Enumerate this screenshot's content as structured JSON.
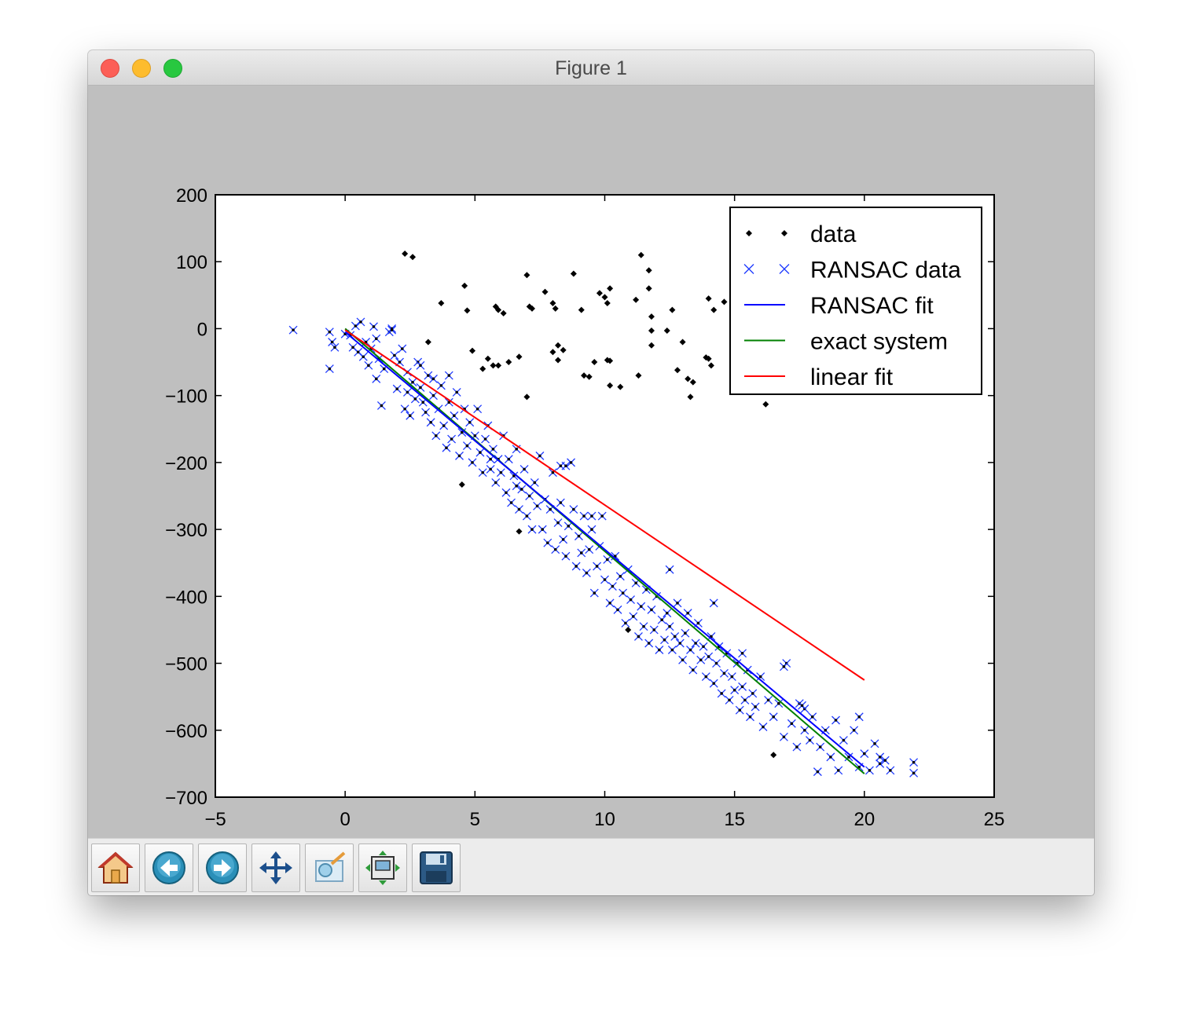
{
  "window": {
    "title": "Figure 1"
  },
  "toolbar": {
    "buttons": [
      {
        "name": "home",
        "icon": "home-icon",
        "label": "Home"
      },
      {
        "name": "back",
        "icon": "back-arrow-icon",
        "label": "Back"
      },
      {
        "name": "forward",
        "icon": "forward-arrow-icon",
        "label": "Forward"
      },
      {
        "name": "pan",
        "icon": "pan-icon",
        "label": "Pan"
      },
      {
        "name": "zoom",
        "icon": "zoom-rect-icon",
        "label": "Zoom"
      },
      {
        "name": "subplots",
        "icon": "subplots-config-icon",
        "label": "Subplots"
      },
      {
        "name": "save",
        "icon": "save-floppy-icon",
        "label": "Save"
      }
    ]
  },
  "chart_data": {
    "type": "scatter",
    "title": "",
    "xlabel": "",
    "ylabel": "",
    "xlim": [
      -5,
      25
    ],
    "ylim": [
      -700,
      200
    ],
    "xticks": [
      "−5",
      "0",
      "5",
      "10",
      "15",
      "20",
      "25"
    ],
    "yticks": [
      "200",
      "100",
      "0",
      "−100",
      "−200",
      "−300",
      "−400",
      "−500",
      "−600",
      "−700"
    ],
    "legend_position": "top-right",
    "grid": false,
    "series": [
      {
        "name": "data",
        "kind": "points",
        "marker": "diamond",
        "color": "#000000",
        "points": [
          [
            2.3,
            112
          ],
          [
            2.6,
            107
          ],
          [
            3.7,
            38
          ],
          [
            4.6,
            64
          ],
          [
            4.7,
            27
          ],
          [
            4.9,
            -33
          ],
          [
            5.3,
            -60
          ],
          [
            5.8,
            33
          ],
          [
            5.9,
            28
          ],
          [
            6.1,
            23
          ],
          [
            5.5,
            -45
          ],
          [
            5.7,
            -55
          ],
          [
            5.9,
            -55
          ],
          [
            6.3,
            -50
          ],
          [
            6.7,
            -42
          ],
          [
            7.0,
            80
          ],
          [
            7.1,
            33
          ],
          [
            7.2,
            30
          ],
          [
            7.7,
            55
          ],
          [
            8.0,
            38
          ],
          [
            8.1,
            30
          ],
          [
            8.2,
            -25
          ],
          [
            8.0,
            -35
          ],
          [
            8.4,
            -32
          ],
          [
            8.2,
            -47
          ],
          [
            8.8,
            82
          ],
          [
            9.1,
            28
          ],
          [
            9.8,
            53
          ],
          [
            10.0,
            47
          ],
          [
            10.1,
            38
          ],
          [
            10.2,
            60
          ],
          [
            9.6,
            -50
          ],
          [
            10.1,
            -47
          ],
          [
            10.2,
            -48
          ],
          [
            9.2,
            -70
          ],
          [
            9.4,
            -72
          ],
          [
            10.2,
            -85
          ],
          [
            10.6,
            -87
          ],
          [
            11.2,
            43
          ],
          [
            11.4,
            110
          ],
          [
            11.7,
            87
          ],
          [
            11.7,
            60
          ],
          [
            11.8,
            18
          ],
          [
            11.8,
            -3
          ],
          [
            12.4,
            -3
          ],
          [
            12.6,
            28
          ],
          [
            11.3,
            -70
          ],
          [
            11.8,
            -25
          ],
          [
            12.8,
            -62
          ],
          [
            13.0,
            -20
          ],
          [
            13.2,
            -75
          ],
          [
            13.4,
            -80
          ],
          [
            13.3,
            -102
          ],
          [
            13.9,
            -43
          ],
          [
            14.0,
            -45
          ],
          [
            14.1,
            -55
          ],
          [
            14.0,
            45
          ],
          [
            14.2,
            28
          ],
          [
            14.6,
            40
          ],
          [
            16.2,
            -113
          ],
          [
            10.9,
            -450
          ],
          [
            16.5,
            -637
          ],
          [
            6.7,
            -303
          ],
          [
            4.5,
            -233
          ],
          [
            3.2,
            -20
          ],
          [
            7.0,
            -102
          ]
        ]
      },
      {
        "name": "RANSAC data",
        "kind": "points",
        "marker": "x",
        "color": "#1f3bff",
        "points": [
          [
            -2.0,
            -2
          ],
          [
            -0.6,
            -5
          ],
          [
            -0.6,
            -60
          ],
          [
            -0.5,
            -20
          ],
          [
            -0.4,
            -28
          ],
          [
            0.0,
            -8
          ],
          [
            0.2,
            -10
          ],
          [
            0.3,
            -28
          ],
          [
            0.4,
            4
          ],
          [
            0.6,
            10
          ],
          [
            0.5,
            -35
          ],
          [
            0.7,
            -42
          ],
          [
            0.8,
            -20
          ],
          [
            0.9,
            -55
          ],
          [
            1.0,
            -30
          ],
          [
            1.1,
            3
          ],
          [
            1.2,
            -15
          ],
          [
            1.3,
            -45
          ],
          [
            1.2,
            -75
          ],
          [
            1.4,
            -115
          ],
          [
            1.5,
            -60
          ],
          [
            1.7,
            -5
          ],
          [
            1.8,
            0
          ],
          [
            1.9,
            -40
          ],
          [
            2.0,
            -90
          ],
          [
            2.1,
            -50
          ],
          [
            2.2,
            -30
          ],
          [
            2.3,
            -120
          ],
          [
            2.4,
            -95
          ],
          [
            2.4,
            -65
          ],
          [
            2.5,
            -130
          ],
          [
            2.6,
            -80
          ],
          [
            2.7,
            -105
          ],
          [
            2.8,
            -50
          ],
          [
            2.9,
            -88
          ],
          [
            3.0,
            -110
          ],
          [
            3.1,
            -125
          ],
          [
            3.2,
            -70
          ],
          [
            3.3,
            -140
          ],
          [
            3.4,
            -100
          ],
          [
            3.5,
            -160
          ],
          [
            3.6,
            -120
          ],
          [
            3.7,
            -85
          ],
          [
            3.8,
            -145
          ],
          [
            3.9,
            -178
          ],
          [
            4.0,
            -110
          ],
          [
            4.1,
            -165
          ],
          [
            4.2,
            -130
          ],
          [
            4.3,
            -95
          ],
          [
            4.4,
            -190
          ],
          [
            4.5,
            -155
          ],
          [
            4.6,
            -120
          ],
          [
            4.7,
            -175
          ],
          [
            4.8,
            -140
          ],
          [
            4.9,
            -200
          ],
          [
            5.0,
            -160
          ],
          [
            5.1,
            -120
          ],
          [
            5.2,
            -185
          ],
          [
            5.3,
            -215
          ],
          [
            5.4,
            -165
          ],
          [
            5.5,
            -145
          ],
          [
            5.6,
            -210
          ],
          [
            5.7,
            -180
          ],
          [
            5.8,
            -230
          ],
          [
            5.9,
            -195
          ],
          [
            6.0,
            -215
          ],
          [
            6.1,
            -160
          ],
          [
            6.2,
            -245
          ],
          [
            6.3,
            -195
          ],
          [
            6.4,
            -260
          ],
          [
            6.5,
            -220
          ],
          [
            6.6,
            -180
          ],
          [
            6.7,
            -270
          ],
          [
            6.8,
            -240
          ],
          [
            6.9,
            -210
          ],
          [
            7.0,
            -280
          ],
          [
            7.1,
            -250
          ],
          [
            7.2,
            -300
          ],
          [
            7.3,
            -230
          ],
          [
            7.4,
            -265
          ],
          [
            7.5,
            -190
          ],
          [
            7.6,
            -300
          ],
          [
            7.7,
            -255
          ],
          [
            7.8,
            -320
          ],
          [
            7.9,
            -270
          ],
          [
            8.0,
            -215
          ],
          [
            8.1,
            -330
          ],
          [
            8.2,
            -290
          ],
          [
            8.3,
            -260
          ],
          [
            8.4,
            -315
          ],
          [
            8.5,
            -340
          ],
          [
            8.6,
            -295
          ],
          [
            8.7,
            -200
          ],
          [
            8.8,
            -270
          ],
          [
            8.9,
            -355
          ],
          [
            9.0,
            -310
          ],
          [
            9.1,
            -335
          ],
          [
            9.2,
            -280
          ],
          [
            9.3,
            -365
          ],
          [
            9.4,
            -330
          ],
          [
            9.5,
            -300
          ],
          [
            9.6,
            -395
          ],
          [
            9.7,
            -355
          ],
          [
            9.8,
            -325
          ],
          [
            9.9,
            -280
          ],
          [
            10.0,
            -375
          ],
          [
            10.1,
            -345
          ],
          [
            10.2,
            -410
          ],
          [
            10.3,
            -385
          ],
          [
            10.4,
            -340
          ],
          [
            10.5,
            -420
          ],
          [
            10.6,
            -370
          ],
          [
            10.7,
            -395
          ],
          [
            10.8,
            -440
          ],
          [
            10.9,
            -360
          ],
          [
            11.0,
            -405
          ],
          [
            11.1,
            -430
          ],
          [
            11.2,
            -380
          ],
          [
            11.3,
            -460
          ],
          [
            11.4,
            -415
          ],
          [
            11.5,
            -445
          ],
          [
            11.6,
            -390
          ],
          [
            11.7,
            -470
          ],
          [
            11.8,
            -420
          ],
          [
            11.9,
            -450
          ],
          [
            12.0,
            -400
          ],
          [
            12.1,
            -480
          ],
          [
            12.2,
            -435
          ],
          [
            12.3,
            -465
          ],
          [
            12.4,
            -425
          ],
          [
            12.5,
            -445
          ],
          [
            12.6,
            -480
          ],
          [
            12.7,
            -460
          ],
          [
            12.8,
            -410
          ],
          [
            12.9,
            -470
          ],
          [
            13.0,
            -495
          ],
          [
            13.1,
            -455
          ],
          [
            13.2,
            -425
          ],
          [
            13.3,
            -480
          ],
          [
            13.4,
            -510
          ],
          [
            13.5,
            -470
          ],
          [
            13.6,
            -440
          ],
          [
            13.7,
            -495
          ],
          [
            13.8,
            -475
          ],
          [
            13.9,
            -520
          ],
          [
            14.0,
            -490
          ],
          [
            14.1,
            -460
          ],
          [
            14.2,
            -530
          ],
          [
            14.3,
            -500
          ],
          [
            14.4,
            -475
          ],
          [
            14.5,
            -545
          ],
          [
            14.6,
            -515
          ],
          [
            14.7,
            -485
          ],
          [
            14.8,
            -555
          ],
          [
            14.9,
            -520
          ],
          [
            15.0,
            -540
          ],
          [
            15.1,
            -500
          ],
          [
            15.2,
            -570
          ],
          [
            15.3,
            -535
          ],
          [
            15.4,
            -555
          ],
          [
            15.5,
            -510
          ],
          [
            15.6,
            -580
          ],
          [
            15.7,
            -545
          ],
          [
            15.8,
            -565
          ],
          [
            16.0,
            -520
          ],
          [
            16.1,
            -595
          ],
          [
            16.3,
            -555
          ],
          [
            16.5,
            -580
          ],
          [
            16.7,
            -560
          ],
          [
            16.9,
            -610
          ],
          [
            17.0,
            -500
          ],
          [
            17.2,
            -590
          ],
          [
            17.4,
            -625
          ],
          [
            17.5,
            -560
          ],
          [
            17.7,
            -600
          ],
          [
            17.9,
            -615
          ],
          [
            18.0,
            -580
          ],
          [
            18.2,
            -662
          ],
          [
            18.3,
            -625
          ],
          [
            18.5,
            -600
          ],
          [
            18.7,
            -640
          ],
          [
            18.9,
            -585
          ],
          [
            19.0,
            -660
          ],
          [
            19.2,
            -615
          ],
          [
            19.4,
            -640
          ],
          [
            19.6,
            -600
          ],
          [
            19.8,
            -655
          ],
          [
            20.0,
            -635
          ],
          [
            20.2,
            -660
          ],
          [
            20.4,
            -620
          ],
          [
            20.6,
            -650
          ],
          [
            20.8,
            -645
          ],
          [
            21.0,
            -660
          ],
          [
            21.9,
            -648
          ],
          [
            21.9,
            -664
          ],
          [
            1.8,
            -2
          ],
          [
            2.9,
            -55
          ],
          [
            3.4,
            -75
          ],
          [
            4.0,
            -70
          ],
          [
            5.6,
            -195
          ],
          [
            6.6,
            -235
          ],
          [
            8.3,
            -205
          ],
          [
            8.5,
            -205
          ],
          [
            9.5,
            -280
          ],
          [
            12.5,
            -360
          ],
          [
            14.2,
            -410
          ],
          [
            15.3,
            -485
          ],
          [
            17.7,
            -568
          ],
          [
            17.6,
            -563
          ],
          [
            16.9,
            -505
          ],
          [
            19.8,
            -580
          ],
          [
            20.6,
            -640
          ]
        ]
      },
      {
        "name": "RANSAC fit",
        "kind": "line",
        "color": "#0000ff",
        "points": [
          [
            0,
            -5
          ],
          [
            20,
            -655
          ]
        ]
      },
      {
        "name": "exact system",
        "kind": "line",
        "color": "#008000",
        "points": [
          [
            0,
            0
          ],
          [
            20,
            -665
          ]
        ]
      },
      {
        "name": "linear fit",
        "kind": "line",
        "color": "#ff0000",
        "points": [
          [
            0,
            -2
          ],
          [
            20,
            -525
          ]
        ]
      }
    ]
  }
}
